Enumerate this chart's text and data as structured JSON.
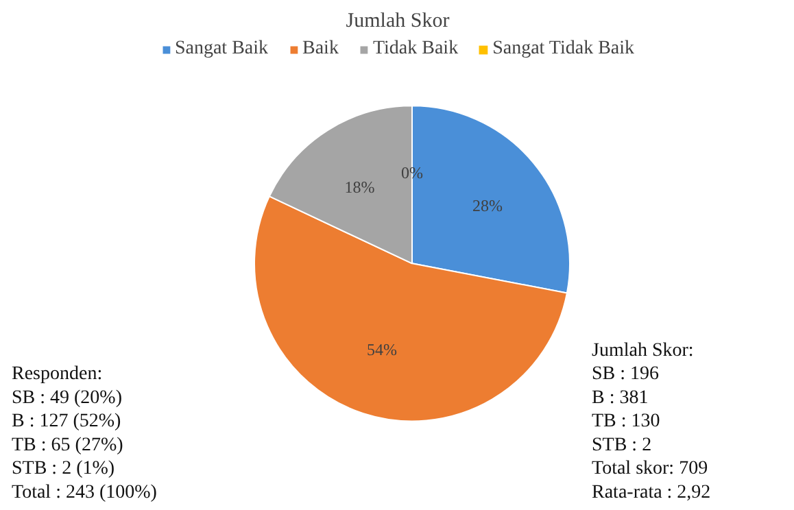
{
  "chart_data": {
    "type": "pie",
    "title": "Jumlah Skor",
    "categories": [
      "Sangat Baik",
      "Baik",
      "Tidak Baik",
      "Sangat Tidak Baik"
    ],
    "values": [
      28,
      54,
      18,
      0
    ],
    "colors": [
      "#4a8fd8",
      "#ed7d31",
      "#a5a5a5",
      "#ffc000"
    ],
    "value_labels": [
      "28%",
      "54%",
      "18%",
      "0%"
    ],
    "legend": "top",
    "annotations": [
      "Responden:\nSB      : 49 (20%)\nB        : 127 (52%)\nTB      : 65 (27%)\nSTB    : 2 (1%)\nTotal  : 243 (100%)",
      "Jumlah Skor:\nSB      : 196\nB        : 381\nTB      : 130\nSTB    : 2\nTotal skor: 709\nRata-rata  : 2,92"
    ]
  }
}
